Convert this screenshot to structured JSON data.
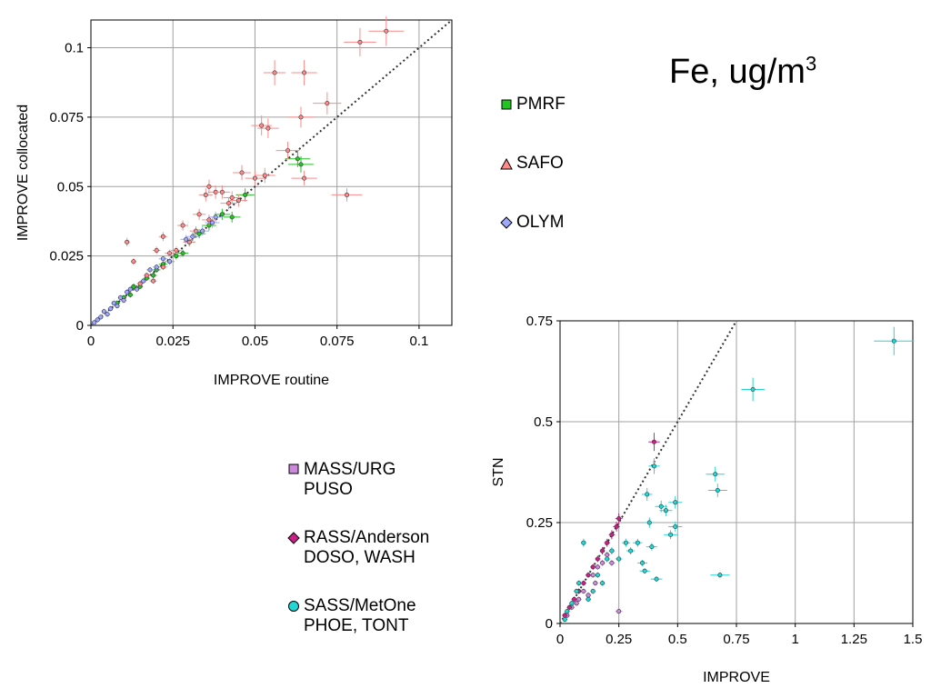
{
  "title_main": "Fe, ug/m",
  "title_sup": "3",
  "legend_top": [
    {
      "label": "PMRF",
      "color": "#22c422",
      "marker": "square"
    },
    {
      "label": "SAFO",
      "color": "#ff8a8a",
      "marker": "triangle"
    },
    {
      "label": "OLYM",
      "color": "#9fa8ff",
      "marker": "diamond"
    }
  ],
  "legend_bottom": [
    {
      "line1": "MASS/URG",
      "line2": "PUSO",
      "color": "#cc88dd",
      "marker": "square"
    },
    {
      "line1": "RASS/Anderson",
      "line2": "DOSO, WASH",
      "color": "#cc1e8a",
      "marker": "diamond"
    },
    {
      "line1": "SASS/MetOne",
      "line2": "PHOE, TONT",
      "color": "#22d6d6",
      "marker": "circle"
    }
  ],
  "chart_data": [
    {
      "type": "scatter",
      "xlabel": "IMPROVE routine",
      "ylabel": "IMPROVE collocated",
      "xlim": [
        0,
        0.11
      ],
      "ylim": [
        0,
        0.11
      ],
      "xticks": [
        0,
        0.025,
        0.05,
        0.075,
        0.1
      ],
      "xtick_labels": [
        "0",
        "0.025",
        "0.05",
        "0.075",
        "0.1"
      ],
      "yticks": [
        0,
        0.025,
        0.05,
        0.075,
        0.1
      ],
      "ytick_labels": [
        "0",
        "0.025",
        "0.05",
        "0.075",
        "0.1"
      ],
      "grid": true,
      "one_to_one_line": true,
      "series": [
        {
          "name": "PMRF",
          "color": "#22c422",
          "points": [
            [
              0.008,
              0.008
            ],
            [
              0.01,
              0.01
            ],
            [
              0.012,
              0.011
            ],
            [
              0.013,
              0.014
            ],
            [
              0.015,
              0.014
            ],
            [
              0.017,
              0.017
            ],
            [
              0.019,
              0.018
            ],
            [
              0.02,
              0.02
            ],
            [
              0.022,
              0.022
            ],
            [
              0.024,
              0.023
            ],
            [
              0.026,
              0.025
            ],
            [
              0.028,
              0.026
            ],
            [
              0.03,
              0.03
            ],
            [
              0.033,
              0.033
            ],
            [
              0.036,
              0.036
            ],
            [
              0.04,
              0.04
            ],
            [
              0.043,
              0.039
            ],
            [
              0.047,
              0.047
            ],
            [
              0.063,
              0.06
            ],
            [
              0.064,
              0.058
            ]
          ]
        },
        {
          "name": "SAFO",
          "color": "#ff8a8a",
          "points": [
            [
              0.011,
              0.03
            ],
            [
              0.013,
              0.023
            ],
            [
              0.015,
              0.015
            ],
            [
              0.017,
              0.018
            ],
            [
              0.019,
              0.016
            ],
            [
              0.02,
              0.027
            ],
            [
              0.022,
              0.021
            ],
            [
              0.022,
              0.032
            ],
            [
              0.024,
              0.026
            ],
            [
              0.026,
              0.027
            ],
            [
              0.028,
              0.036
            ],
            [
              0.03,
              0.03
            ],
            [
              0.032,
              0.034
            ],
            [
              0.033,
              0.04
            ],
            [
              0.035,
              0.047
            ],
            [
              0.036,
              0.05
            ],
            [
              0.036,
              0.038
            ],
            [
              0.038,
              0.048
            ],
            [
              0.04,
              0.048
            ],
            [
              0.042,
              0.044
            ],
            [
              0.043,
              0.046
            ],
            [
              0.045,
              0.045
            ],
            [
              0.046,
              0.055
            ],
            [
              0.05,
              0.053
            ],
            [
              0.052,
              0.072
            ],
            [
              0.053,
              0.054
            ],
            [
              0.054,
              0.071
            ],
            [
              0.056,
              0.091
            ],
            [
              0.06,
              0.063
            ],
            [
              0.064,
              0.075
            ],
            [
              0.065,
              0.053
            ],
            [
              0.065,
              0.091
            ],
            [
              0.072,
              0.08
            ],
            [
              0.078,
              0.047
            ],
            [
              0.082,
              0.102
            ],
            [
              0.09,
              0.106
            ]
          ]
        },
        {
          "name": "OLYM",
          "color": "#9fa8ff",
          "points": [
            [
              0.001,
              0.001
            ],
            [
              0.002,
              0.002
            ],
            [
              0.003,
              0.003
            ],
            [
              0.004,
              0.005
            ],
            [
              0.005,
              0.004
            ],
            [
              0.006,
              0.006
            ],
            [
              0.007,
              0.008
            ],
            [
              0.008,
              0.007
            ],
            [
              0.009,
              0.01
            ],
            [
              0.01,
              0.009
            ],
            [
              0.011,
              0.012
            ],
            [
              0.012,
              0.013
            ],
            [
              0.014,
              0.013
            ],
            [
              0.016,
              0.016
            ],
            [
              0.018,
              0.02
            ],
            [
              0.02,
              0.021
            ],
            [
              0.022,
              0.024
            ],
            [
              0.024,
              0.023
            ],
            [
              0.029,
              0.031
            ],
            [
              0.031,
              0.032
            ],
            [
              0.034,
              0.034
            ],
            [
              0.037,
              0.037
            ],
            [
              0.038,
              0.039
            ]
          ]
        }
      ]
    },
    {
      "type": "scatter",
      "xlabel": "IMPROVE",
      "ylabel": "STN",
      "xlim": [
        0,
        1.5
      ],
      "ylim": [
        0,
        0.75
      ],
      "xticks": [
        0,
        0.25,
        0.5,
        0.75,
        1,
        1.25,
        1.5
      ],
      "xtick_labels": [
        "0",
        "0.25",
        "0.5",
        "0.75",
        "1",
        "1.25",
        "1.5"
      ],
      "yticks": [
        0,
        0.25,
        0.5,
        0.75
      ],
      "ytick_labels": [
        "0",
        "0.25",
        "0.5",
        "0.75"
      ],
      "grid": true,
      "one_to_one_line": true,
      "series": [
        {
          "name": "MASS/URG",
          "color": "#cc88dd",
          "points": [
            [
              0.03,
              0.02
            ],
            [
              0.05,
              0.04
            ],
            [
              0.07,
              0.05
            ],
            [
              0.08,
              0.06
            ],
            [
              0.1,
              0.08
            ],
            [
              0.12,
              0.07
            ],
            [
              0.14,
              0.12
            ],
            [
              0.15,
              0.1
            ],
            [
              0.16,
              0.14
            ],
            [
              0.18,
              0.15
            ],
            [
              0.2,
              0.17
            ],
            [
              0.22,
              0.15
            ],
            [
              0.25,
              0.03
            ]
          ]
        },
        {
          "name": "RASS/Anderson",
          "color": "#cc1e8a",
          "points": [
            [
              0.02,
              0.02
            ],
            [
              0.04,
              0.04
            ],
            [
              0.06,
              0.06
            ],
            [
              0.08,
              0.08
            ],
            [
              0.1,
              0.1
            ],
            [
              0.12,
              0.12
            ],
            [
              0.14,
              0.14
            ],
            [
              0.16,
              0.16
            ],
            [
              0.18,
              0.18
            ],
            [
              0.2,
              0.2
            ],
            [
              0.22,
              0.22
            ],
            [
              0.24,
              0.24
            ],
            [
              0.25,
              0.26
            ],
            [
              0.4,
              0.45
            ]
          ]
        },
        {
          "name": "SASS/MetOne",
          "color": "#22d6d6",
          "points": [
            [
              0.02,
              0.01
            ],
            [
              0.03,
              0.03
            ],
            [
              0.05,
              0.05
            ],
            [
              0.07,
              0.08
            ],
            [
              0.08,
              0.1
            ],
            [
              0.1,
              0.2
            ],
            [
              0.12,
              0.06
            ],
            [
              0.14,
              0.08
            ],
            [
              0.16,
              0.12
            ],
            [
              0.18,
              0.1
            ],
            [
              0.2,
              0.16
            ],
            [
              0.22,
              0.18
            ],
            [
              0.25,
              0.16
            ],
            [
              0.28,
              0.2
            ],
            [
              0.3,
              0.18
            ],
            [
              0.33,
              0.2
            ],
            [
              0.35,
              0.15
            ],
            [
              0.36,
              0.13
            ],
            [
              0.37,
              0.32
            ],
            [
              0.38,
              0.25
            ],
            [
              0.39,
              0.19
            ],
            [
              0.4,
              0.39
            ],
            [
              0.41,
              0.11
            ],
            [
              0.43,
              0.29
            ],
            [
              0.45,
              0.28
            ],
            [
              0.47,
              0.22
            ],
            [
              0.49,
              0.3
            ],
            [
              0.49,
              0.24
            ],
            [
              0.66,
              0.37
            ],
            [
              0.67,
              0.33
            ],
            [
              0.68,
              0.12
            ],
            [
              0.82,
              0.58
            ],
            [
              1.42,
              0.7
            ]
          ]
        }
      ]
    }
  ]
}
